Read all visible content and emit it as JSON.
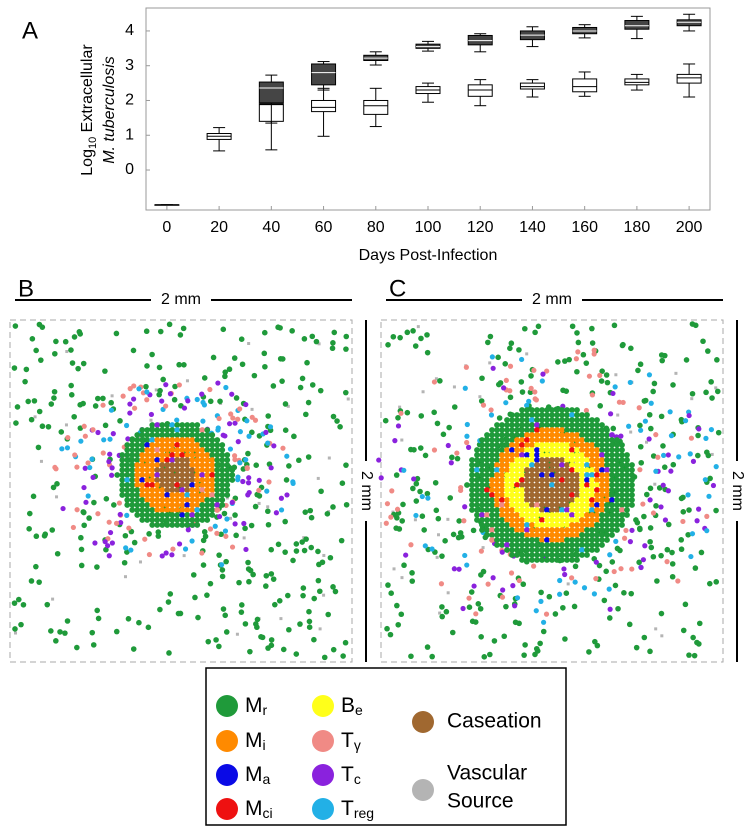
{
  "chart_data": {
    "type": "box",
    "panel_label": "A",
    "y_label": {
      "base": "Log",
      "sub": "10",
      "rest": " Extracellular",
      "line2": "M. tuberculosis"
    },
    "x_label": "Days Post-Infection",
    "x": [
      0,
      20,
      40,
      60,
      80,
      100,
      120,
      140,
      160,
      180,
      200
    ],
    "xlim": [
      -8,
      208
    ],
    "xticks": [
      0,
      20,
      40,
      60,
      80,
      100,
      120,
      140,
      160,
      180,
      200
    ],
    "ylim": [
      -1.15,
      4.66
    ],
    "yticks": [
      0,
      1,
      2,
      3,
      4
    ],
    "series": [
      {
        "color": "#ffffff",
        "whislo": [
          -1,
          0.55,
          1.35,
          0.97,
          1.25,
          1.95,
          1.85,
          2.1,
          2.12,
          2.3,
          2.1
        ],
        "q1": [
          -1,
          0.88,
          1.4,
          1.68,
          1.6,
          2.2,
          2.12,
          2.33,
          2.25,
          2.45,
          2.5
        ],
        "med": [
          -1,
          0.97,
          1.88,
          1.8,
          1.85,
          2.3,
          2.3,
          2.4,
          2.4,
          2.52,
          2.65
        ],
        "q3": [
          -1,
          1.05,
          1.9,
          2.0,
          2.0,
          2.4,
          2.45,
          2.5,
          2.62,
          2.62,
          2.75
        ],
        "whishi": [
          -1,
          1.22,
          2.0,
          2.35,
          2.35,
          2.5,
          2.6,
          2.6,
          2.82,
          2.75,
          3.05
        ]
      },
      {
        "color": "#454545",
        "whislo": [
          null,
          null,
          0.58,
          2.3,
          3.02,
          3.42,
          3.4,
          3.55,
          3.8,
          3.78,
          4.0
        ],
        "q1": [
          null,
          null,
          1.93,
          2.45,
          3.15,
          3.5,
          3.6,
          3.75,
          3.92,
          4.05,
          4.15
        ],
        "med": [
          null,
          null,
          2.36,
          2.8,
          3.22,
          3.55,
          3.72,
          3.88,
          4.0,
          4.15,
          4.25
        ],
        "q3": [
          null,
          null,
          2.53,
          3.05,
          3.3,
          3.62,
          3.87,
          4.0,
          4.1,
          4.3,
          4.32
        ],
        "whishi": [
          null,
          null,
          2.73,
          3.12,
          3.4,
          3.7,
          3.92,
          4.12,
          4.18,
          4.42,
          4.48
        ]
      }
    ]
  },
  "panels": [
    {
      "label": "B",
      "scale_top": "2 mm",
      "scale_side": "2 mm"
    },
    {
      "label": "C",
      "scale_top": "2 mm",
      "scale_side": "2 mm"
    }
  ],
  "legend": [
    {
      "label": "M",
      "sub": "r",
      "color": "#1f9a3a"
    },
    {
      "label": "M",
      "sub": "i",
      "color": "#ff8a00"
    },
    {
      "label": "M",
      "sub": "a",
      "color": "#0a0ae6"
    },
    {
      "label": "M",
      "sub": "ci",
      "color": "#ee1111"
    },
    {
      "label": "B",
      "sub": "e",
      "color": "#ffff1a"
    },
    {
      "label": "T",
      "sub": "γ",
      "color": "#f08a85"
    },
    {
      "label": "T",
      "sub": "c",
      "color": "#8a22dd"
    },
    {
      "label": "T",
      "sub": "reg",
      "color": "#22b0e6"
    },
    {
      "label": "Caseation",
      "color": "#a06830"
    },
    {
      "label": "Vascular",
      "label2": "Source",
      "color": "#b4b4b4"
    }
  ]
}
